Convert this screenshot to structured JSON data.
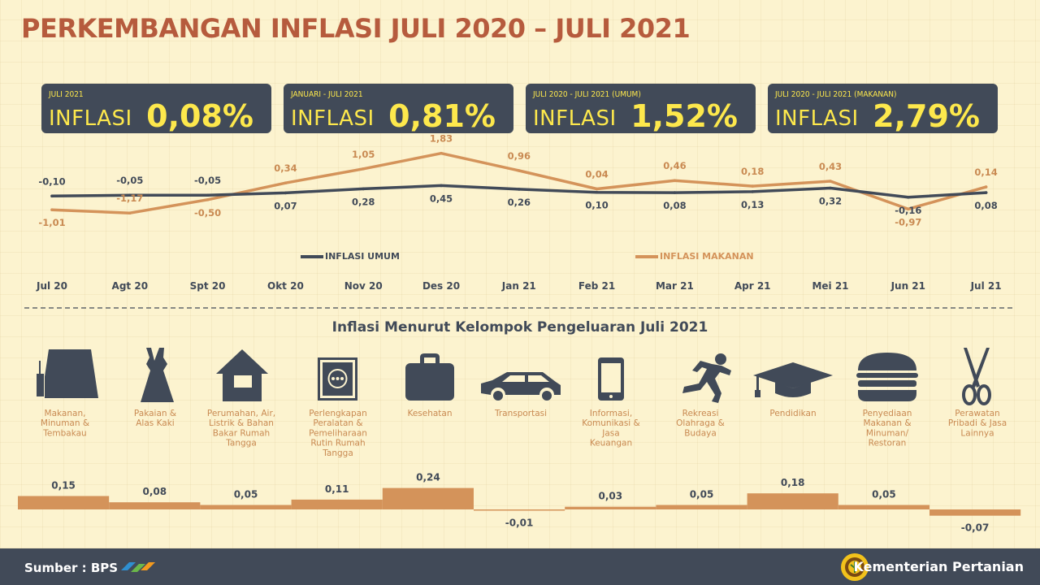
{
  "title": "PERKEMBANGAN INFLASI JULI 2020 – JULI 2021",
  "cards": [
    {
      "sub": "JULI 2021",
      "label": "INFLASI",
      "value": "0,08%"
    },
    {
      "sub": "JANUARI  -  JULI 2021",
      "label": "INFLASI",
      "value": "0,81%"
    },
    {
      "sub": "JULI 2020 - JULI 2021 (UMUM)",
      "label": "INFLASI",
      "value": "1,52%"
    },
    {
      "sub": "JULI  2020 - JULI 2021 (MAKANAN)",
      "label": "INFLASI",
      "value": "2,79%"
    }
  ],
  "colors": {
    "umum": "#414a58",
    "makanan": "#d4935a",
    "accent_title": "#b65b3d",
    "card_text": "#fde84c",
    "bar": "#d4935a"
  },
  "chart_data": [
    {
      "type": "line",
      "x": [
        "Jul 20",
        "Agt 20",
        "Spt 20",
        "Okt 20",
        "Nov 20",
        "Des 20",
        "Jan 21",
        "Feb 21",
        "Mar 21",
        "Apr 21",
        "Mei 21",
        "Jun 21",
        "Jul 21"
      ],
      "series": [
        {
          "name": "INFLASI UMUM",
          "values": [
            -0.1,
            -0.05,
            -0.05,
            0.07,
            0.28,
            0.45,
            0.26,
            0.1,
            0.08,
            0.13,
            0.32,
            -0.16,
            0.08
          ],
          "labels": [
            "-0,10",
            "-0,05",
            "-0,05",
            "0,07",
            "0,28",
            "0,45",
            "0,26",
            "0,10",
            "0,08",
            "0,13",
            "0,32",
            "-0,16",
            "0,08"
          ],
          "label_pos": [
            "above",
            "above",
            "above",
            "below",
            "below",
            "below",
            "below",
            "below",
            "below",
            "below",
            "below",
            "below",
            "below"
          ]
        },
        {
          "name": "INFLASI MAKANAN",
          "values": [
            -1.01,
            -1.17,
            -0.5,
            0.34,
            1.05,
            1.83,
            0.96,
            0.04,
            0.46,
            0.18,
            0.43,
            -0.97,
            0.14
          ],
          "labels": [
            "-1,01",
            "-1,17",
            "-0,50",
            "0,34",
            "1,05",
            "1,83",
            "0,96",
            "0,04",
            "0,46",
            "0,18",
            "0,43",
            "-0,97",
            "0,14"
          ],
          "label_pos": [
            "below",
            "above",
            "below",
            "above",
            "above",
            "above",
            "above",
            "above",
            "above",
            "above",
            "above",
            "below",
            "above"
          ]
        }
      ],
      "legend_placement": "bottom",
      "grid": false
    },
    {
      "type": "bar",
      "title": "Inflasi Menurut Kelompok Pengeluaran Juli 2021",
      "categories": [
        "Makanan, Minuman & Tembakau",
        "Pakaian & Alas Kaki",
        "Perumahan, Air, Listrik & Bahan Bakar Rumah Tangga",
        "Perlengkapan Peralatan & Pemeliharaan Rutin Rumah Tangga",
        "Kesehatan",
        "Transportasi",
        "Informasi, Komunikasi & Jasa Keuangan",
        "Rekreasi Olahraga & Budaya",
        "Pendidikan",
        "Penyediaan Makanan & Minuman/ Restoran",
        "Perawatan Pribadi & Jasa Lainnya"
      ],
      "category_lines": [
        [
          "Makanan,",
          "Minuman &",
          "Tembakau"
        ],
        [
          "Pakaian &",
          "Alas Kaki"
        ],
        [
          "Perumahan, Air,",
          "Listrik & Bahan",
          "Bakar Rumah",
          "Tangga"
        ],
        [
          "Perlengkapan",
          "Peralatan &",
          "Pemeliharaan",
          "Rutin Rumah",
          "Tangga"
        ],
        [
          "Kesehatan"
        ],
        [
          "Transportasi"
        ],
        [
          "Informasi,",
          "Komunikasi &",
          "Jasa",
          "Keuangan"
        ],
        [
          "Rekreasi",
          "Olahraga &",
          "Budaya"
        ],
        [
          "Pendidikan"
        ],
        [
          "Penyediaan",
          "Makanan &",
          "Minuman/",
          "Restoran"
        ],
        [
          "Perawatan",
          "Pribadi & Jasa",
          "Lainnya"
        ]
      ],
      "icons": [
        "food-basket-icon",
        "dress-icon",
        "house-icon",
        "washing-machine-icon",
        "briefcase-icon",
        "car-icon",
        "phone-icon",
        "runner-icon",
        "graduation-cap-icon",
        "burger-icon",
        "scissors-icon"
      ],
      "values": [
        0.15,
        0.08,
        0.05,
        0.11,
        0.24,
        -0.01,
        0.03,
        0.05,
        0.18,
        0.05,
        -0.07
      ],
      "labels": [
        "0,15",
        "0,08",
        "0,05",
        "0,11",
        "0,24",
        "-0,01",
        "0,03",
        "0,05",
        "0,18",
        "0,05",
        "-0,07"
      ]
    }
  ],
  "footer": {
    "source": "Sumber : BPS",
    "ministry": "Kementerian Pertanian"
  }
}
